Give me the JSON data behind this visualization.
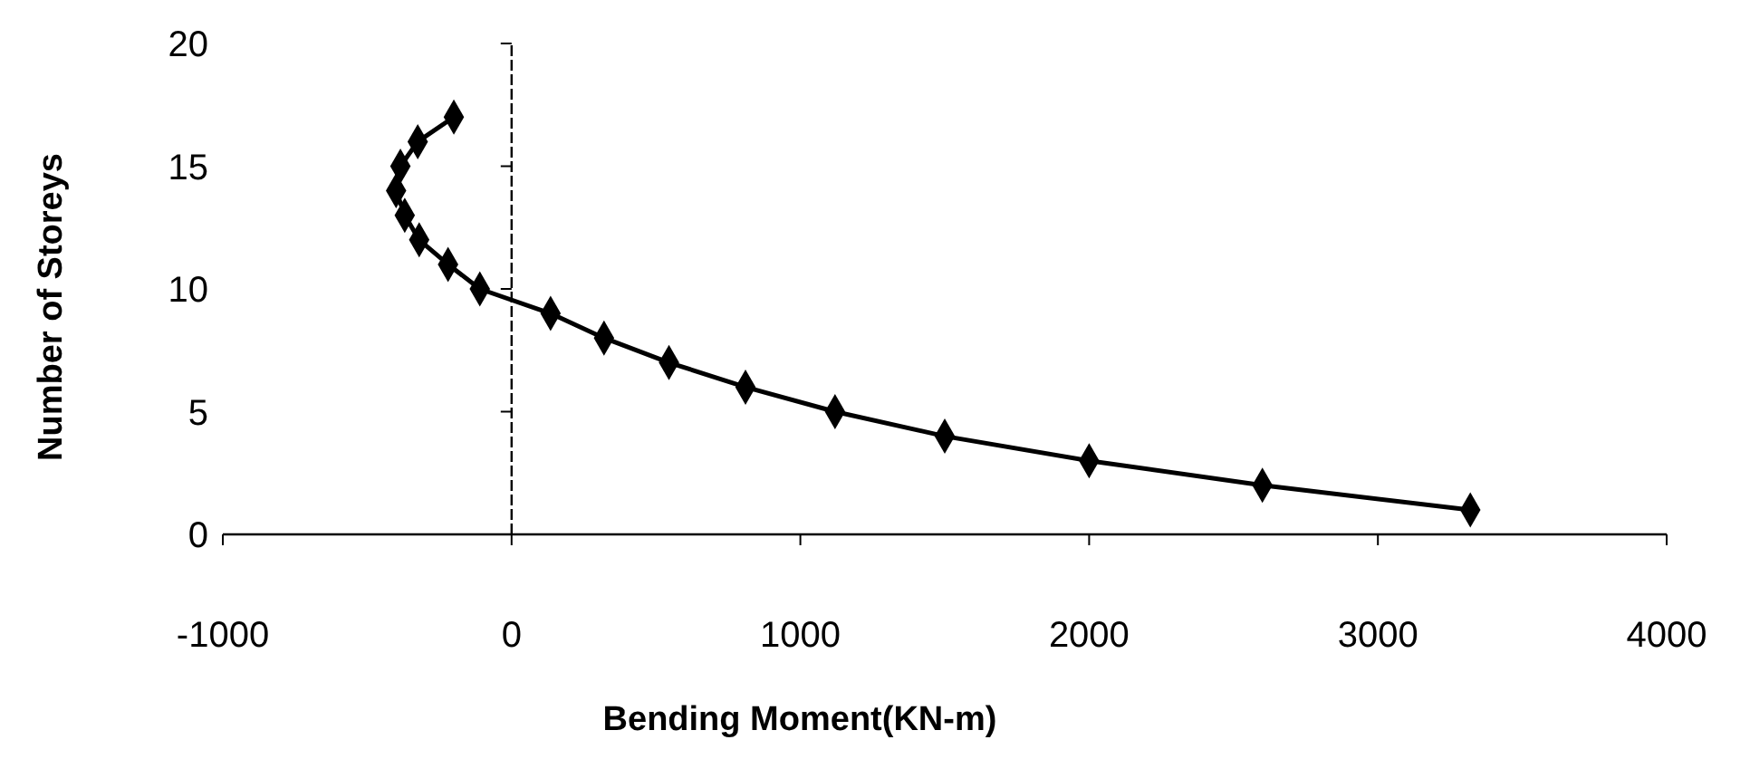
{
  "chart_data": {
    "type": "line",
    "xlabel": "Bending Moment(KN-m)",
    "ylabel": "Number of Storeys",
    "xlim": [
      -1000,
      4000
    ],
    "xticks": [
      -1000,
      0,
      1000,
      2000,
      3000,
      4000
    ],
    "ylim": [
      0,
      20
    ],
    "yticks": [
      0,
      5,
      10,
      15,
      20
    ],
    "marker": "diamond",
    "line_style": "solid",
    "series": [
      {
        "color": "#000000",
        "x": [
          3320,
          2600,
          2000,
          1500,
          1120,
          810,
          545,
          320,
          135,
          -110,
          -220,
          -320,
          -370,
          -400,
          -385,
          -325,
          -200
        ],
        "values": [
          1,
          2,
          3,
          4,
          5,
          6,
          7,
          8,
          9,
          10,
          11,
          12,
          13,
          14,
          15,
          16,
          17
        ]
      }
    ]
  }
}
